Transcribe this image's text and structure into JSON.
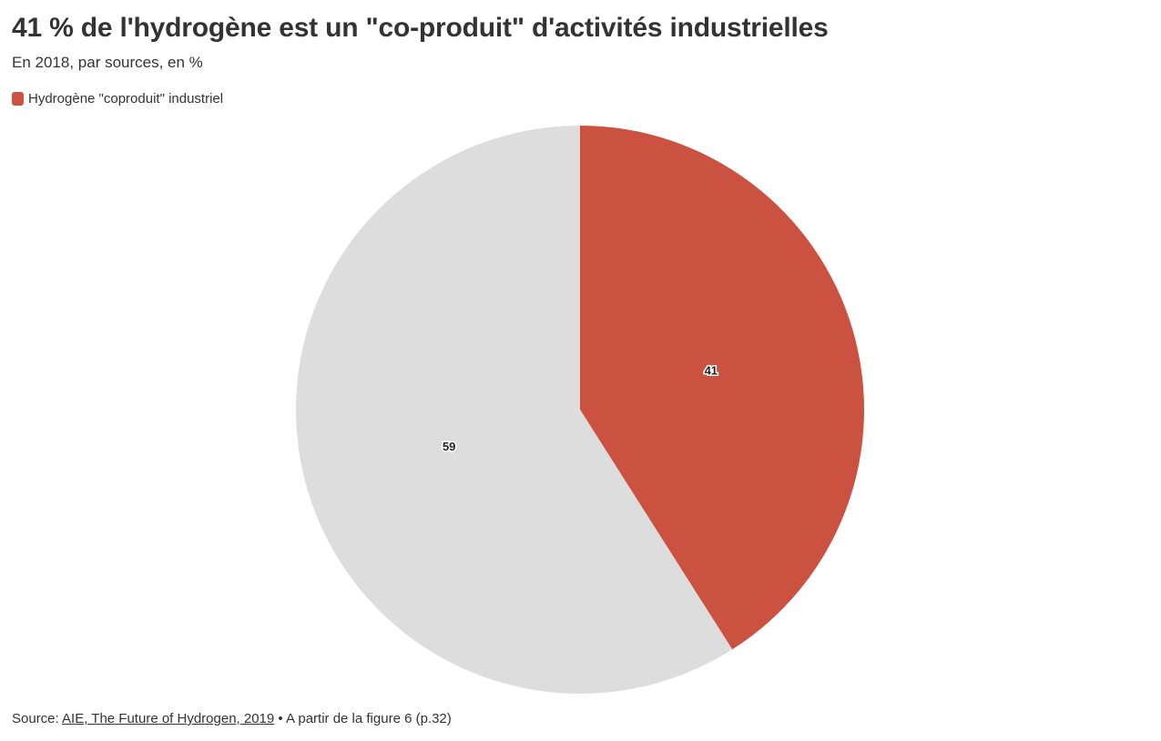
{
  "title": "41 % de l'hydrogène est un \"co-produit\" d'activités industrielles",
  "subtitle": "En 2018, par sources, en %",
  "legend": {
    "items": [
      {
        "label": "Hydrogène \"coproduit\" industriel",
        "color": "#cb5140"
      }
    ]
  },
  "footer": {
    "source_prefix": "Source: ",
    "source_link": "AIE, The Future of Hydrogen, 2019",
    "source_suffix": " • A partir de la figure 6 (p.32)"
  },
  "chart_data": {
    "type": "pie",
    "categories": [
      "Hydrogène \"coproduit\" industriel",
      ""
    ],
    "values": [
      41,
      59
    ],
    "labels": [
      "41",
      "59"
    ],
    "colors": [
      "#cb5140",
      "#dddddd"
    ]
  }
}
